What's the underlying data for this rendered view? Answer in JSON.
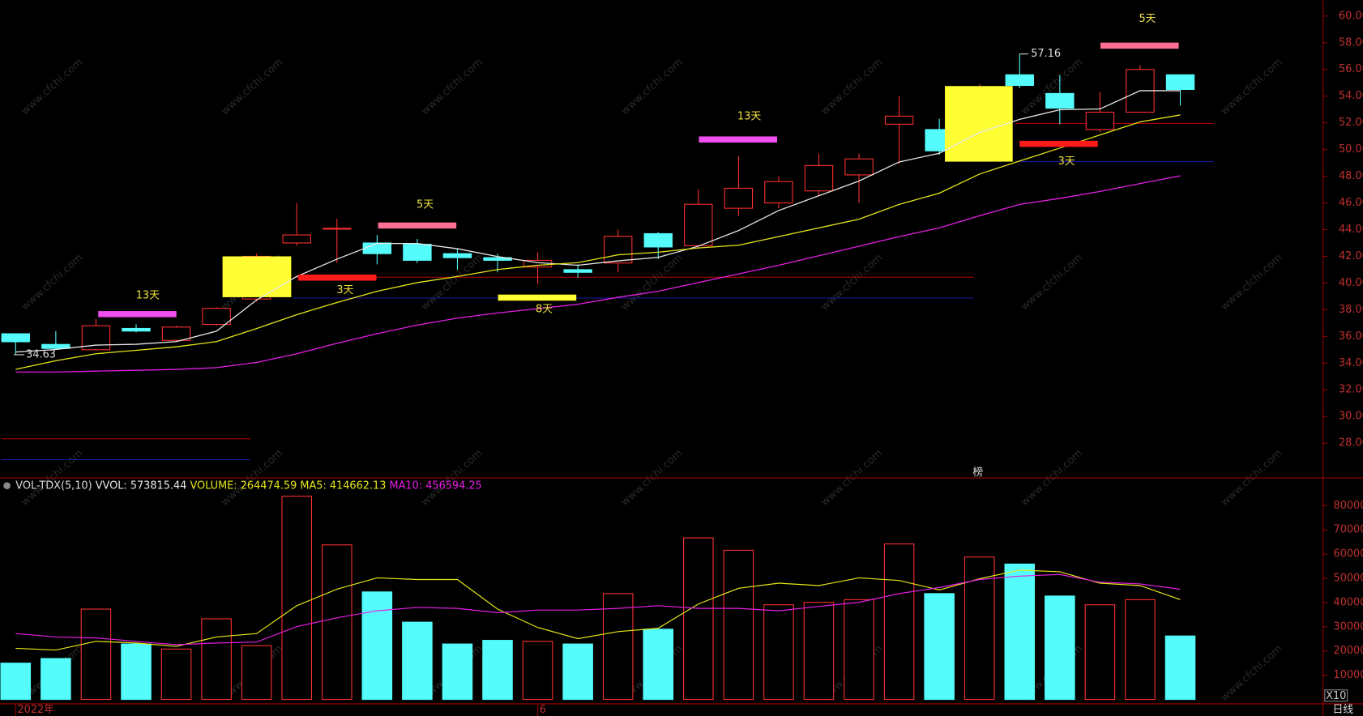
{
  "chart_data": [
    {
      "type": "candlestick",
      "categories": [
        "2022年",
        null,
        null,
        null,
        null,
        null,
        null,
        null,
        null,
        null,
        null,
        null,
        null,
        "6",
        null,
        null,
        null,
        null,
        null,
        null,
        null,
        null,
        null,
        null,
        null,
        null,
        null,
        null,
        null,
        null
      ],
      "open": [
        36.2,
        35.4,
        35.0,
        36.6,
        35.7,
        36.9,
        38.8,
        43.0,
        44.1,
        43.0,
        42.9,
        42.2,
        41.9,
        41.2,
        41.0,
        41.5,
        43.7,
        42.8,
        45.6,
        46.0,
        46.9,
        48.1,
        51.9,
        51.5,
        49.3,
        55.6,
        54.2,
        51.5,
        52.8,
        55.6
      ],
      "high": [
        36.2,
        36.4,
        37.3,
        36.9,
        36.8,
        38.2,
        42.2,
        46.0,
        44.8,
        43.6,
        43.3,
        42.6,
        42.2,
        42.3,
        41.4,
        44.0,
        43.8,
        47.0,
        49.5,
        48.0,
        49.7,
        49.7,
        54.0,
        52.3,
        54.9,
        57.16,
        55.6,
        54.3,
        56.3,
        55.6
      ],
      "low": [
        34.63,
        35.0,
        34.9,
        36.3,
        35.6,
        36.8,
        38.6,
        42.8,
        41.5,
        41.4,
        41.5,
        41.0,
        40.8,
        39.9,
        40.4,
        40.8,
        41.8,
        42.6,
        45.0,
        45.6,
        46.5,
        46.0,
        48.9,
        49.6,
        49.1,
        54.6,
        51.9,
        51.3,
        52.8,
        53.3
      ],
      "close": [
        35.6,
        35.1,
        36.8,
        36.4,
        36.7,
        38.1,
        42.0,
        43.6,
        44.1,
        42.2,
        41.7,
        41.9,
        41.7,
        41.7,
        40.8,
        43.5,
        42.7,
        45.9,
        47.1,
        47.6,
        48.8,
        49.3,
        52.5,
        49.9,
        54.7,
        54.8,
        53.1,
        52.8,
        56.0,
        54.5
      ],
      "up_color": "#ff3030",
      "down_color": "#54fcfc",
      "series": [
        {
          "color": "#e8e8e8",
          "values": [
            34.83,
            35.02,
            35.35,
            35.41,
            35.61,
            36.39,
            38.73,
            40.49,
            41.79,
            42.96,
            42.96,
            42.57,
            41.98,
            41.53,
            41.33,
            41.66,
            41.92,
            42.76,
            43.93,
            45.43,
            46.54,
            47.64,
            49.07,
            49.72,
            51.28,
            52.26,
            52.98,
            53.04,
            54.41,
            54.41
          ]
        },
        {
          "color": "#e6e619",
          "values": [
            33.53,
            34.18,
            34.7,
            34.96,
            35.22,
            35.61,
            36.59,
            37.63,
            38.54,
            39.38,
            40.03,
            40.49,
            41.01,
            41.33,
            41.53,
            42.11,
            42.31,
            42.63,
            42.83,
            43.48,
            44.13,
            44.78,
            45.89,
            46.73,
            48.16,
            49.14,
            50.11,
            51.09,
            52.07,
            52.59
          ]
        },
        {
          "color": "#e41ee4",
          "values": [
            33.33,
            33.33,
            33.4,
            33.46,
            33.53,
            33.66,
            34.05,
            34.7,
            35.48,
            36.2,
            36.85,
            37.37,
            37.76,
            38.08,
            38.41,
            38.93,
            39.38,
            40.03,
            40.68,
            41.33,
            42.04,
            42.76,
            43.48,
            44.13,
            45.04,
            45.89,
            46.34,
            46.86,
            47.45,
            48.03
          ]
        }
      ],
      "ylim": [
        25.4,
        61.2
      ],
      "yticks": [
        {
          "value": 28,
          "label": "28.00"
        },
        {
          "value": 30,
          "label": "30.00"
        },
        {
          "value": 32,
          "label": "32.00"
        },
        {
          "value": 34,
          "label": "34.00"
        },
        {
          "value": 36,
          "label": "36.00"
        },
        {
          "value": 38,
          "label": "38.00"
        },
        {
          "value": 40,
          "label": "40.00"
        },
        {
          "value": 42,
          "label": "42.00"
        },
        {
          "value": 44,
          "label": "44.00"
        },
        {
          "value": 46,
          "label": "46.00"
        },
        {
          "value": 48,
          "label": "48.00"
        },
        {
          "value": 50,
          "label": "50.00"
        },
        {
          "value": 52,
          "label": "52.00"
        },
        {
          "value": 54,
          "label": "54.00"
        },
        {
          "value": 56,
          "label": "56.00"
        },
        {
          "value": 58,
          "label": "58.00"
        },
        {
          "value": 60,
          "label": "60.00"
        }
      ],
      "annotations": [
        "13天",
        "3天",
        "5天",
        "8天",
        "13天",
        "3天",
        "5天"
      ],
      "marker_label": "榜",
      "period": "日线",
      "watermark": "www.cfchi.com"
    },
    {
      "type": "bar",
      "indicator": "VOL-TDX(5,10)",
      "stats": [
        {
          "label": "VVOL:",
          "value": 573815.44,
          "color": "#e8e8e8"
        },
        {
          "label": "VOLUME:",
          "value": 264474.59,
          "color": "#e6e619"
        },
        {
          "label": "MA5:",
          "value": 414662.13,
          "color": "#e6e619"
        },
        {
          "label": "MA10:",
          "value": 456594.25,
          "color": "#e41ee4"
        }
      ],
      "values": [
        15000,
        16900,
        37300,
        22900,
        20800,
        33300,
        22200,
        83900,
        63800,
        44400,
        31900,
        22900,
        24400,
        24000,
        22900,
        43700,
        29000,
        66700,
        61600,
        39100,
        40100,
        41200,
        64200,
        43700,
        58800,
        55900,
        42700,
        39100,
        41200,
        26200
      ],
      "series": [
        {
          "name": "MA5",
          "color": "#e6e619",
          "values": [
            21100,
            20400,
            24000,
            23300,
            21900,
            25800,
            27200,
            38700,
            45500,
            50200,
            49500,
            49500,
            37300,
            29700,
            25100,
            28000,
            29400,
            39400,
            45900,
            48000,
            47000,
            50200,
            49100,
            45200,
            49800,
            53400,
            52700,
            48000,
            47000,
            41200
          ]
        },
        {
          "name": "MA10",
          "color": "#e41ee4",
          "values": [
            27200,
            25800,
            25400,
            24000,
            22600,
            23300,
            23700,
            30100,
            33700,
            36600,
            38000,
            37600,
            35800,
            36900,
            36900,
            37600,
            38700,
            37600,
            37600,
            36600,
            38400,
            40100,
            43700,
            46200,
            49500,
            50900,
            51600,
            48400,
            47700,
            45500
          ]
        }
      ],
      "ylim": [
        0,
        85000
      ],
      "yticks": [
        10000,
        20000,
        30000,
        40000,
        50000,
        60000,
        70000,
        80000
      ],
      "scale_label": "X10"
    }
  ]
}
